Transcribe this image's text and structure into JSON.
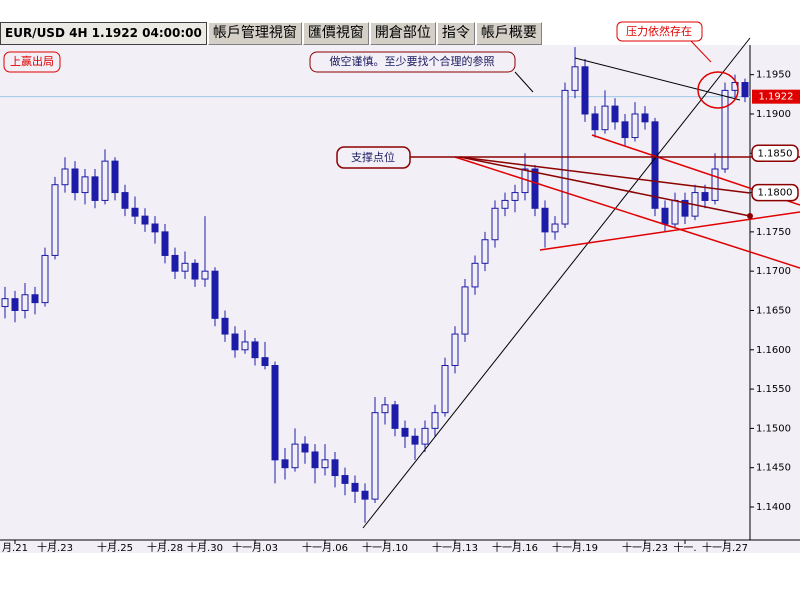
{
  "tabs": [
    "EUR/USD 4H 1.1922 04:00:00",
    "帳戶管理視窗",
    "匯價視窗",
    "開倉部位",
    "指令",
    "帳戶概要"
  ],
  "annotations": {
    "take_profit": "上赢出局",
    "caution": "做空谨慎。至少要找个合理的参照",
    "support": "支撑点位",
    "resistance": "压力依然存在"
  },
  "chart_data": {
    "type": "candlestick",
    "color": "#1c1ca8",
    "ohlc": [
      [
        1.1655,
        1.168,
        1.164,
        1.1665
      ],
      [
        1.1665,
        1.1675,
        1.1635,
        1.165
      ],
      [
        1.165,
        1.1685,
        1.164,
        1.167
      ],
      [
        1.167,
        1.168,
        1.1645,
        1.166
      ],
      [
        1.166,
        1.173,
        1.1655,
        1.172
      ],
      [
        1.172,
        1.182,
        1.1715,
        1.181
      ],
      [
        1.181,
        1.1845,
        1.18,
        1.183
      ],
      [
        1.183,
        1.184,
        1.179,
        1.18
      ],
      [
        1.18,
        1.183,
        1.1785,
        1.182
      ],
      [
        1.182,
        1.183,
        1.178,
        1.179
      ],
      [
        1.179,
        1.1855,
        1.1785,
        1.184
      ],
      [
        1.184,
        1.1845,
        1.179,
        1.18
      ],
      [
        1.18,
        1.181,
        1.177,
        1.178
      ],
      [
        1.178,
        1.1795,
        1.176,
        1.177
      ],
      [
        1.177,
        1.178,
        1.175,
        1.176
      ],
      [
        1.176,
        1.177,
        1.1735,
        1.175
      ],
      [
        1.175,
        1.176,
        1.171,
        1.172
      ],
      [
        1.172,
        1.173,
        1.169,
        1.17
      ],
      [
        1.17,
        1.1725,
        1.169,
        1.171
      ],
      [
        1.171,
        1.1715,
        1.168,
        1.169
      ],
      [
        1.169,
        1.177,
        1.168,
        1.17
      ],
      [
        1.17,
        1.1705,
        1.163,
        1.164
      ],
      [
        1.164,
        1.165,
        1.161,
        1.162
      ],
      [
        1.162,
        1.163,
        1.159,
        1.16
      ],
      [
        1.16,
        1.1625,
        1.1595,
        1.161
      ],
      [
        1.161,
        1.1615,
        1.158,
        1.159
      ],
      [
        1.159,
        1.161,
        1.1575,
        1.158
      ],
      [
        1.158,
        1.1585,
        1.143,
        1.146
      ],
      [
        1.146,
        1.1475,
        1.1435,
        1.145
      ],
      [
        1.145,
        1.15,
        1.1445,
        1.148
      ],
      [
        1.148,
        1.149,
        1.1455,
        1.147
      ],
      [
        1.147,
        1.148,
        1.143,
        1.145
      ],
      [
        1.145,
        1.148,
        1.144,
        1.146
      ],
      [
        1.146,
        1.147,
        1.1425,
        1.144
      ],
      [
        1.144,
        1.145,
        1.1415,
        1.143
      ],
      [
        1.143,
        1.144,
        1.1405,
        1.142
      ],
      [
        1.142,
        1.143,
        1.138,
        1.141
      ],
      [
        1.141,
        1.154,
        1.1405,
        1.152
      ],
      [
        1.152,
        1.154,
        1.1505,
        1.153
      ],
      [
        1.153,
        1.1535,
        1.149,
        1.15
      ],
      [
        1.15,
        1.151,
        1.1475,
        1.149
      ],
      [
        1.149,
        1.15,
        1.146,
        1.148
      ],
      [
        1.148,
        1.151,
        1.147,
        1.15
      ],
      [
        1.15,
        1.153,
        1.149,
        1.152
      ],
      [
        1.152,
        1.159,
        1.1515,
        1.158
      ],
      [
        1.158,
        1.163,
        1.157,
        1.162
      ],
      [
        1.162,
        1.169,
        1.161,
        1.168
      ],
      [
        1.168,
        1.172,
        1.167,
        1.171
      ],
      [
        1.171,
        1.175,
        1.17,
        1.174
      ],
      [
        1.174,
        1.179,
        1.173,
        1.178
      ],
      [
        1.178,
        1.18,
        1.177,
        1.179
      ],
      [
        1.179,
        1.181,
        1.1775,
        1.18
      ],
      [
        1.18,
        1.185,
        1.179,
        1.183
      ],
      [
        1.183,
        1.1835,
        1.177,
        1.178
      ],
      [
        1.178,
        1.179,
        1.173,
        1.175
      ],
      [
        1.175,
        1.177,
        1.174,
        1.176
      ],
      [
        1.176,
        1.194,
        1.1755,
        1.193
      ],
      [
        1.193,
        1.1985,
        1.192,
        1.196
      ],
      [
        1.196,
        1.197,
        1.189,
        1.19
      ],
      [
        1.19,
        1.191,
        1.187,
        1.188
      ],
      [
        1.188,
        1.193,
        1.1875,
        1.191
      ],
      [
        1.191,
        1.192,
        1.188,
        1.189
      ],
      [
        1.189,
        1.19,
        1.186,
        1.187
      ],
      [
        1.187,
        1.1915,
        1.1865,
        1.19
      ],
      [
        1.19,
        1.191,
        1.188,
        1.189
      ],
      [
        1.189,
        1.1895,
        1.177,
        1.178
      ],
      [
        1.178,
        1.179,
        1.175,
        1.176
      ],
      [
        1.176,
        1.18,
        1.1755,
        1.179
      ],
      [
        1.179,
        1.18,
        1.176,
        1.177
      ],
      [
        1.177,
        1.181,
        1.1765,
        1.18
      ],
      [
        1.18,
        1.181,
        1.178,
        1.179
      ],
      [
        1.179,
        1.185,
        1.1785,
        1.183
      ],
      [
        1.183,
        1.194,
        1.1825,
        1.193
      ],
      [
        1.193,
        1.195,
        1.192,
        1.194
      ],
      [
        1.194,
        1.1945,
        1.1915,
        1.1922
      ]
    ],
    "xticks": [
      {
        "value": 1,
        "label": "月.21"
      },
      {
        "value": 5,
        "label": "十月.23"
      },
      {
        "value": 11,
        "label": "十月.25"
      },
      {
        "value": 16,
        "label": "十月.28"
      },
      {
        "value": 20,
        "label": "十月.30"
      },
      {
        "value": 25,
        "label": "十一月.03"
      },
      {
        "value": 32,
        "label": "十一月.06"
      },
      {
        "value": 38,
        "label": "十一月.10"
      },
      {
        "value": 45,
        "label": "十一月.13"
      },
      {
        "value": 51,
        "label": "十一月.16"
      },
      {
        "value": 57,
        "label": "十一月.19"
      },
      {
        "value": 64,
        "label": "十一月.23"
      },
      {
        "value": 68,
        "label": "十一."
      },
      {
        "value": 72,
        "label": "十一月.27"
      }
    ],
    "ylim": [
      1.1358,
      1.2017
    ],
    "yticks": [
      {
        "value": 1.14,
        "label": "1.1400"
      },
      {
        "value": 1.145,
        "label": "1.1450"
      },
      {
        "value": 1.15,
        "label": "1.1500"
      },
      {
        "value": 1.155,
        "label": "1.1550"
      },
      {
        "value": 1.16,
        "label": "1.1600"
      },
      {
        "value": 1.165,
        "label": "1.1650"
      },
      {
        "value": 1.17,
        "label": "1.1700"
      },
      {
        "value": 1.175,
        "label": "1.1750"
      },
      {
        "value": 1.18,
        "label": "1.1800"
      },
      {
        "value": 1.185,
        "label": "1.1850"
      },
      {
        "value": 1.19,
        "label": "1.1900"
      },
      {
        "value": 1.195,
        "label": "1.1950"
      }
    ],
    "last_price": 1.1922,
    "level_labels": [
      {
        "value": 1.185,
        "label": "1.1850"
      },
      {
        "value": 1.18,
        "label": "1.1800"
      }
    ]
  }
}
